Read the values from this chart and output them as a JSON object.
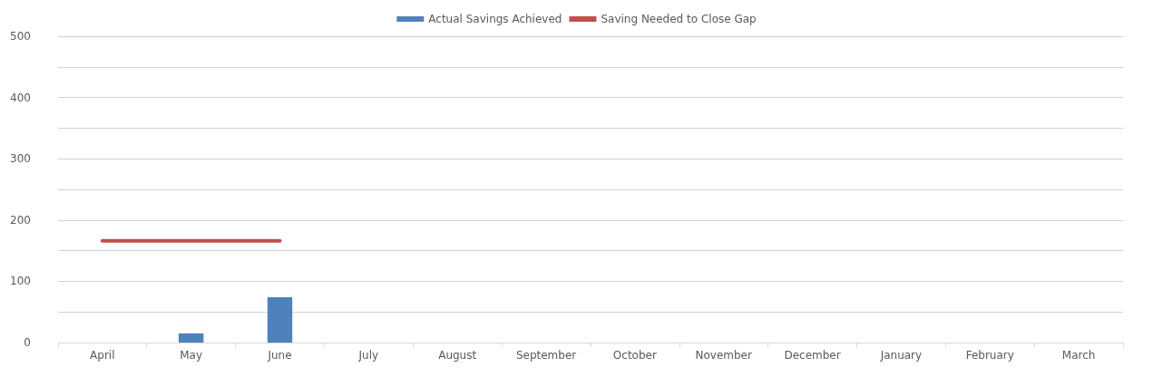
{
  "chart_data": {
    "type": "bar",
    "categories": [
      "April",
      "May",
      "June",
      "July",
      "August",
      "September",
      "October",
      "November",
      "December",
      "January",
      "February",
      "March"
    ],
    "series": [
      {
        "name": "Actual Savings Achieved",
        "color": "#4f81bd",
        "values": [
          null,
          15,
          74,
          null,
          null,
          null,
          null,
          null,
          null,
          null,
          null,
          null
        ]
      },
      {
        "name": "Saving Needed to Close Gap",
        "type": "line",
        "color": "#c0504d",
        "values": [
          166,
          166,
          166,
          null,
          null,
          null,
          null,
          null,
          null,
          null,
          null,
          null
        ]
      }
    ],
    "ylim": [
      0,
      500
    ],
    "yticks": [
      0,
      {
        "value": 50,
        "label": null
      },
      100,
      {
        "value": 150,
        "label": null
      },
      200,
      {
        "value": 250,
        "label": null
      },
      300,
      {
        "value": 350,
        "label": null
      },
      400,
      {
        "value": 450,
        "label": null
      },
      500
    ],
    "grid": "y",
    "legend": "top",
    "marker": "none"
  }
}
